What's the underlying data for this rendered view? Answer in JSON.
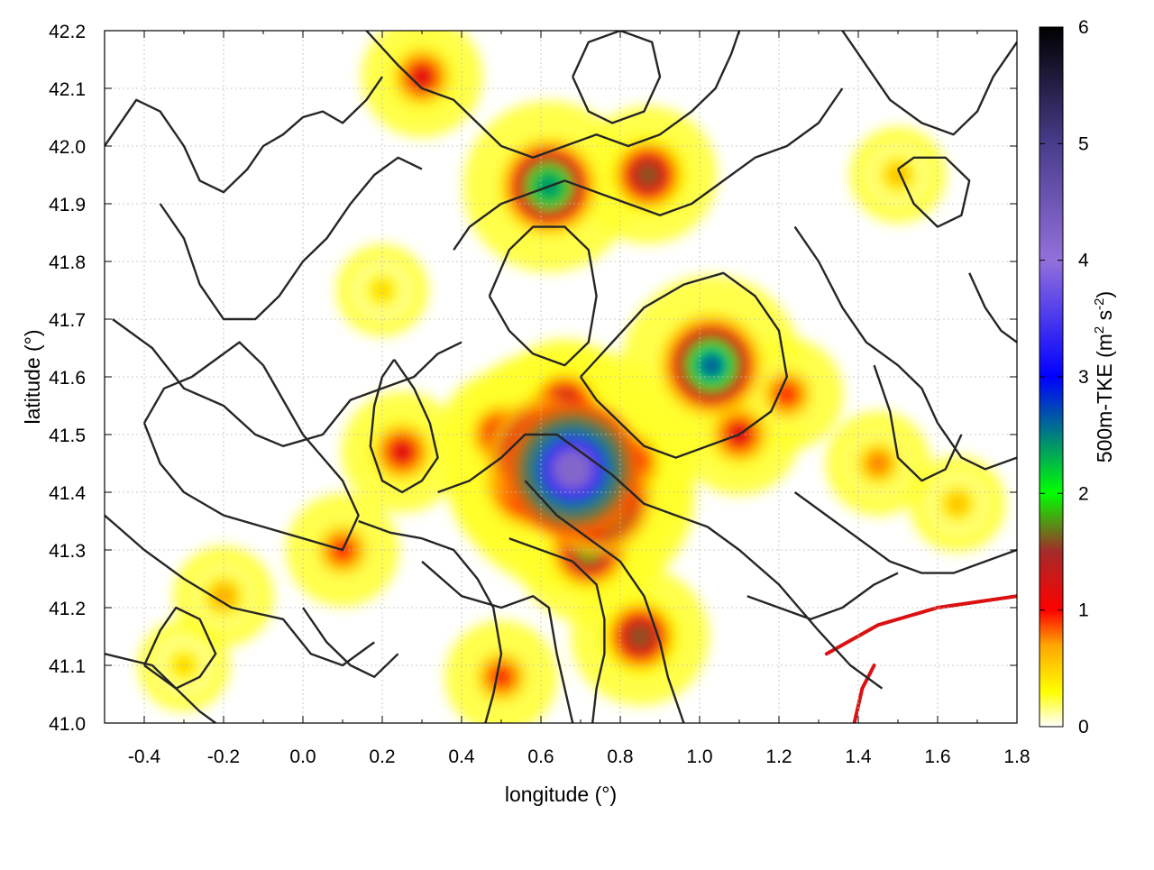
{
  "chart_data": {
    "type": "heatmap",
    "title": "",
    "xlabel": "longitude (°)",
    "ylabel": "latitude (°)",
    "xlim": [
      -0.5,
      1.8
    ],
    "ylim": [
      41.0,
      42.2
    ],
    "xticks": [
      -0.4,
      -0.2,
      0.0,
      0.2,
      0.4,
      0.6,
      0.8,
      1.0,
      1.2,
      1.4,
      1.6,
      1.8
    ],
    "xtick_labels": [
      "-0.4",
      "-0.2",
      "0.0",
      "0.2",
      "0.4",
      "0.6",
      "0.8",
      "1.0",
      "1.2",
      "1.4",
      "1.6",
      "1.8"
    ],
    "yticks": [
      41.0,
      41.1,
      41.2,
      41.3,
      41.4,
      41.5,
      41.6,
      41.7,
      41.8,
      41.9,
      42.0,
      42.1,
      42.2
    ],
    "ytick_labels": [
      "41.0",
      "41.1",
      "41.2",
      "41.3",
      "41.4",
      "41.5",
      "41.6",
      "41.7",
      "41.8",
      "41.9",
      "42.0",
      "42.1",
      "42.2"
    ],
    "grid": true,
    "colorbar": {
      "label_parts": [
        "500m-TKE (m",
        "2",
        " s",
        "-2",
        ")"
      ],
      "range": [
        0,
        6
      ],
      "ticks": [
        0,
        1,
        2,
        3,
        4,
        5,
        6
      ],
      "tick_labels": [
        "0",
        "1",
        "2",
        "3",
        "4",
        "5",
        "6"
      ],
      "colormap": [
        {
          "value": 0.0,
          "color": "#ffffff"
        },
        {
          "value": 0.3,
          "color": "#ffff00"
        },
        {
          "value": 0.7,
          "color": "#ffa500"
        },
        {
          "value": 1.0,
          "color": "#ff0000"
        },
        {
          "value": 1.5,
          "color": "#a52a2a"
        },
        {
          "value": 2.0,
          "color": "#00ff00"
        },
        {
          "value": 3.0,
          "color": "#0000ff"
        },
        {
          "value": 4.0,
          "color": "#9370db"
        },
        {
          "value": 5.0,
          "color": "#483d8b"
        },
        {
          "value": 6.0,
          "color": "#000000"
        }
      ]
    },
    "field_features": [
      {
        "lon": 0.68,
        "lat": 41.44,
        "value": 4.2
      },
      {
        "lon": 0.62,
        "lat": 41.46,
        "value": 3.4
      },
      {
        "lon": 0.74,
        "lat": 41.39,
        "value": 3.0
      },
      {
        "lon": 0.58,
        "lat": 41.42,
        "value": 2.4
      },
      {
        "lon": 0.66,
        "lat": 41.55,
        "value": 1.5
      },
      {
        "lon": 0.82,
        "lat": 41.45,
        "value": 1.4
      },
      {
        "lon": 0.5,
        "lat": 41.5,
        "value": 1.3
      },
      {
        "lon": 0.25,
        "lat": 41.47,
        "value": 1.2
      },
      {
        "lon": 1.1,
        "lat": 41.5,
        "value": 1.2
      },
      {
        "lon": 1.22,
        "lat": 41.57,
        "value": 1.0
      },
      {
        "lon": 0.72,
        "lat": 41.3,
        "value": 1.8
      },
      {
        "lon": 0.62,
        "lat": 41.93,
        "value": 2.4
      },
      {
        "lon": 0.87,
        "lat": 41.95,
        "value": 1.6
      },
      {
        "lon": 0.3,
        "lat": 42.12,
        "value": 1.2
      },
      {
        "lon": 1.03,
        "lat": 41.62,
        "value": 2.6
      },
      {
        "lon": 0.85,
        "lat": 41.15,
        "value": 1.6
      },
      {
        "lon": 0.1,
        "lat": 41.3,
        "value": 1.0
      },
      {
        "lon": 0.5,
        "lat": 41.08,
        "value": 1.0
      },
      {
        "lon": -0.2,
        "lat": 41.22,
        "value": 0.7
      },
      {
        "lon": 1.45,
        "lat": 41.45,
        "value": 0.8
      },
      {
        "lon": 1.65,
        "lat": 41.38,
        "value": 0.6
      },
      {
        "lon": 0.2,
        "lat": 41.75,
        "value": 0.5
      },
      {
        "lon": 1.5,
        "lat": 41.95,
        "value": 0.6
      },
      {
        "lon": -0.3,
        "lat": 41.1,
        "value": 0.5
      }
    ],
    "ridges": [
      {
        "points": [
          [
            1.32,
            41.12
          ],
          [
            1.45,
            41.17
          ],
          [
            1.6,
            41.2
          ],
          [
            1.8,
            41.22
          ]
        ],
        "value": 1.2
      },
      {
        "points": [
          [
            1.39,
            41.0
          ],
          [
            1.41,
            41.06
          ],
          [
            1.44,
            41.1
          ]
        ],
        "value": 1.2
      }
    ],
    "contours": [
      [
        [
          -0.5,
          41.12
        ],
        [
          -0.38,
          41.1
        ],
        [
          -0.26,
          41.02
        ],
        [
          -0.22,
          41.0
        ]
      ],
      [
        [
          -0.5,
          41.36
        ],
        [
          -0.4,
          41.3
        ],
        [
          -0.3,
          41.25
        ],
        [
          -0.18,
          41.2
        ],
        [
          -0.05,
          41.18
        ],
        [
          0.02,
          41.12
        ],
        [
          0.1,
          41.1
        ],
        [
          0.18,
          41.14
        ]
      ],
      [
        [
          -0.48,
          41.7
        ],
        [
          -0.38,
          41.65
        ],
        [
          -0.3,
          41.58
        ],
        [
          -0.2,
          41.55
        ],
        [
          -0.12,
          41.5
        ],
        [
          -0.05,
          41.48
        ],
        [
          0.05,
          41.5
        ],
        [
          0.12,
          41.56
        ],
        [
          0.2,
          41.58
        ],
        [
          0.28,
          41.6
        ],
        [
          0.34,
          41.64
        ],
        [
          0.4,
          41.66
        ]
      ],
      [
        [
          -0.5,
          42.0
        ],
        [
          -0.42,
          42.08
        ],
        [
          -0.36,
          42.06
        ],
        [
          -0.3,
          42.0
        ],
        [
          -0.26,
          41.94
        ],
        [
          -0.2,
          41.92
        ],
        [
          -0.14,
          41.96
        ],
        [
          -0.1,
          42.0
        ],
        [
          -0.05,
          42.02
        ],
        [
          0.0,
          42.05
        ],
        [
          0.05,
          42.06
        ],
        [
          0.1,
          42.04
        ],
        [
          0.16,
          42.08
        ],
        [
          0.2,
          42.12
        ]
      ],
      [
        [
          -0.36,
          41.9
        ],
        [
          -0.3,
          41.84
        ],
        [
          -0.26,
          41.76
        ],
        [
          -0.2,
          41.7
        ],
        [
          -0.12,
          41.7
        ],
        [
          -0.06,
          41.74
        ],
        [
          0.0,
          41.8
        ],
        [
          0.06,
          41.84
        ],
        [
          0.12,
          41.9
        ],
        [
          0.18,
          41.95
        ],
        [
          0.24,
          41.98
        ],
        [
          0.3,
          41.96
        ]
      ],
      [
        [
          -0.4,
          41.52
        ],
        [
          -0.36,
          41.45
        ],
        [
          -0.3,
          41.4
        ],
        [
          -0.2,
          41.36
        ],
        [
          -0.1,
          41.34
        ],
        [
          0.0,
          41.32
        ],
        [
          0.1,
          41.3
        ],
        [
          0.14,
          41.36
        ],
        [
          0.1,
          41.42
        ],
        [
          0.05,
          41.46
        ],
        [
          0.0,
          41.5
        ],
        [
          -0.05,
          41.56
        ],
        [
          -0.1,
          41.62
        ],
        [
          -0.16,
          41.66
        ],
        [
          -0.2,
          41.64
        ],
        [
          -0.28,
          41.6
        ],
        [
          -0.35,
          41.58
        ],
        [
          -0.4,
          41.52
        ]
      ],
      [
        [
          0.23,
          41.63
        ],
        [
          0.28,
          41.58
        ],
        [
          0.32,
          41.52
        ],
        [
          0.34,
          41.46
        ],
        [
          0.3,
          41.42
        ],
        [
          0.25,
          41.4
        ],
        [
          0.2,
          41.42
        ],
        [
          0.17,
          41.48
        ],
        [
          0.18,
          41.55
        ],
        [
          0.2,
          41.6
        ],
        [
          0.23,
          41.63
        ]
      ],
      [
        [
          0.34,
          41.4
        ],
        [
          0.42,
          41.42
        ],
        [
          0.5,
          41.46
        ],
        [
          0.56,
          41.5
        ],
        [
          0.64,
          41.5
        ],
        [
          0.7,
          41.47
        ],
        [
          0.78,
          41.43
        ],
        [
          0.86,
          41.38
        ],
        [
          0.94,
          41.36
        ],
        [
          1.02,
          41.34
        ],
        [
          1.1,
          41.3
        ],
        [
          1.2,
          41.24
        ],
        [
          1.3,
          41.16
        ],
        [
          1.38,
          41.1
        ],
        [
          1.46,
          41.06
        ]
      ],
      [
        [
          0.14,
          41.35
        ],
        [
          0.22,
          41.33
        ],
        [
          0.3,
          41.32
        ],
        [
          0.38,
          41.3
        ],
        [
          0.44,
          41.25
        ],
        [
          0.48,
          41.2
        ],
        [
          0.5,
          41.12
        ],
        [
          0.48,
          41.05
        ],
        [
          0.46,
          41.0
        ]
      ],
      [
        [
          0.3,
          41.28
        ],
        [
          0.4,
          41.22
        ],
        [
          0.5,
          41.2
        ],
        [
          0.58,
          41.22
        ],
        [
          0.62,
          41.2
        ],
        [
          0.64,
          41.12
        ],
        [
          0.66,
          41.06
        ],
        [
          0.68,
          41.0
        ]
      ],
      [
        [
          0.52,
          41.32
        ],
        [
          0.6,
          41.3
        ],
        [
          0.68,
          41.28
        ],
        [
          0.74,
          41.24
        ],
        [
          0.76,
          41.18
        ],
        [
          0.76,
          41.12
        ],
        [
          0.74,
          41.06
        ],
        [
          0.73,
          41.0
        ]
      ],
      [
        [
          0.56,
          41.42
        ],
        [
          0.64,
          41.36
        ],
        [
          0.72,
          41.32
        ],
        [
          0.8,
          41.28
        ],
        [
          0.86,
          41.22
        ],
        [
          0.9,
          41.14
        ],
        [
          0.92,
          41.08
        ],
        [
          0.96,
          41.0
        ]
      ],
      [
        [
          0.7,
          41.6
        ],
        [
          0.78,
          41.66
        ],
        [
          0.86,
          41.72
        ],
        [
          0.96,
          41.76
        ],
        [
          1.06,
          41.78
        ],
        [
          1.14,
          41.74
        ],
        [
          1.2,
          41.68
        ],
        [
          1.22,
          41.6
        ],
        [
          1.18,
          41.54
        ],
        [
          1.1,
          41.5
        ],
        [
          1.02,
          41.48
        ],
        [
          0.94,
          41.46
        ],
        [
          0.86,
          41.48
        ],
        [
          0.8,
          41.52
        ],
        [
          0.74,
          41.56
        ],
        [
          0.7,
          41.6
        ]
      ],
      [
        [
          0.47,
          41.74
        ],
        [
          0.52,
          41.68
        ],
        [
          0.58,
          41.64
        ],
        [
          0.66,
          41.62
        ],
        [
          0.72,
          41.66
        ],
        [
          0.74,
          41.74
        ],
        [
          0.72,
          41.82
        ],
        [
          0.66,
          41.86
        ],
        [
          0.58,
          41.86
        ],
        [
          0.52,
          41.82
        ],
        [
          0.47,
          41.74
        ]
      ],
      [
        [
          0.38,
          41.82
        ],
        [
          0.42,
          41.86
        ],
        [
          0.5,
          41.9
        ],
        [
          0.58,
          41.92
        ],
        [
          0.66,
          41.94
        ],
        [
          0.74,
          41.92
        ],
        [
          0.82,
          41.9
        ],
        [
          0.9,
          41.88
        ],
        [
          0.98,
          41.9
        ],
        [
          1.06,
          41.94
        ],
        [
          1.14,
          41.98
        ],
        [
          1.22,
          42.0
        ],
        [
          1.3,
          42.04
        ],
        [
          1.36,
          42.1
        ]
      ],
      [
        [
          0.16,
          42.2
        ],
        [
          0.24,
          42.14
        ],
        [
          0.3,
          42.1
        ],
        [
          0.38,
          42.08
        ],
        [
          0.44,
          42.04
        ],
        [
          0.5,
          42.0
        ],
        [
          0.58,
          41.98
        ],
        [
          0.66,
          42.0
        ],
        [
          0.74,
          42.02
        ],
        [
          0.82,
          42.0
        ],
        [
          0.9,
          42.02
        ],
        [
          0.98,
          42.06
        ],
        [
          1.04,
          42.1
        ],
        [
          1.08,
          42.16
        ],
        [
          1.1,
          42.2
        ]
      ],
      [
        [
          0.68,
          42.12
        ],
        [
          0.72,
          42.06
        ],
        [
          0.78,
          42.04
        ],
        [
          0.86,
          42.06
        ],
        [
          0.9,
          42.12
        ],
        [
          0.88,
          42.18
        ],
        [
          0.8,
          42.2
        ],
        [
          0.72,
          42.18
        ],
        [
          0.68,
          42.12
        ]
      ],
      [
        [
          1.24,
          41.86
        ],
        [
          1.3,
          41.8
        ],
        [
          1.36,
          41.72
        ],
        [
          1.42,
          41.66
        ],
        [
          1.5,
          41.62
        ],
        [
          1.56,
          41.58
        ],
        [
          1.6,
          41.52
        ],
        [
          1.66,
          41.46
        ],
        [
          1.72,
          41.44
        ],
        [
          1.8,
          41.46
        ]
      ],
      [
        [
          1.24,
          41.4
        ],
        [
          1.32,
          41.36
        ],
        [
          1.4,
          41.32
        ],
        [
          1.48,
          41.28
        ],
        [
          1.56,
          41.26
        ],
        [
          1.64,
          41.26
        ],
        [
          1.72,
          41.28
        ],
        [
          1.8,
          41.3
        ]
      ],
      [
        [
          1.12,
          41.22
        ],
        [
          1.2,
          41.2
        ],
        [
          1.28,
          41.18
        ],
        [
          1.36,
          41.2
        ],
        [
          1.44,
          41.24
        ],
        [
          1.5,
          41.26
        ]
      ],
      [
        [
          1.44,
          41.62
        ],
        [
          1.48,
          41.54
        ],
        [
          1.5,
          41.46
        ],
        [
          1.56,
          41.42
        ],
        [
          1.62,
          41.44
        ],
        [
          1.66,
          41.5
        ]
      ],
      [
        [
          1.36,
          42.2
        ],
        [
          1.42,
          42.14
        ],
        [
          1.48,
          42.08
        ],
        [
          1.56,
          42.04
        ],
        [
          1.64,
          42.02
        ],
        [
          1.7,
          42.06
        ],
        [
          1.74,
          42.12
        ],
        [
          1.78,
          42.16
        ],
        [
          1.8,
          42.18
        ]
      ],
      [
        [
          1.5,
          41.96
        ],
        [
          1.54,
          41.9
        ],
        [
          1.6,
          41.86
        ],
        [
          1.66,
          41.88
        ],
        [
          1.68,
          41.94
        ],
        [
          1.62,
          41.98
        ],
        [
          1.54,
          41.98
        ],
        [
          1.5,
          41.96
        ]
      ],
      [
        [
          1.68,
          41.78
        ],
        [
          1.72,
          41.72
        ],
        [
          1.76,
          41.68
        ],
        [
          1.8,
          41.66
        ]
      ],
      [
        [
          0.0,
          41.2
        ],
        [
          0.06,
          41.14
        ],
        [
          0.12,
          41.1
        ],
        [
          0.18,
          41.08
        ],
        [
          0.24,
          41.12
        ]
      ],
      [
        [
          -0.4,
          41.1
        ],
        [
          -0.36,
          41.16
        ],
        [
          -0.32,
          41.2
        ],
        [
          -0.26,
          41.18
        ],
        [
          -0.22,
          41.12
        ],
        [
          -0.26,
          41.08
        ],
        [
          -0.32,
          41.06
        ],
        [
          -0.4,
          41.1
        ]
      ]
    ]
  }
}
